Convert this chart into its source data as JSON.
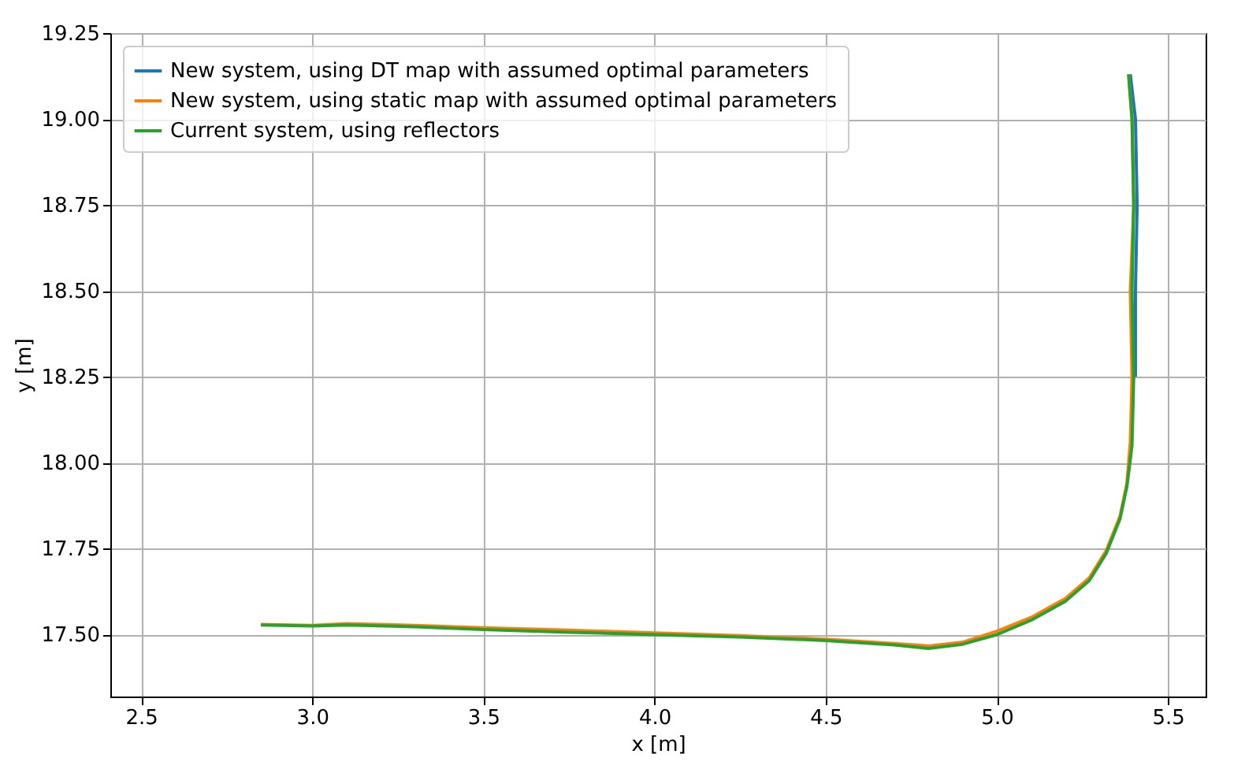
{
  "chart_data": {
    "type": "line",
    "xlabel": "x [m]",
    "ylabel": "y [m]",
    "xlim": [
      2.41,
      5.61
    ],
    "ylim": [
      17.32,
      19.25
    ],
    "xticks": [
      {
        "value": 2.5,
        "label": "2.5"
      },
      {
        "value": 3,
        "label": "3.0"
      },
      {
        "value": 3.5,
        "label": "3.5"
      },
      {
        "value": 4,
        "label": "4.0"
      },
      {
        "value": 4.5,
        "label": "4.5"
      },
      {
        "value": 5,
        "label": "5.0"
      },
      {
        "value": 5.5,
        "label": "5.5"
      }
    ],
    "yticks": [
      {
        "value": 17.5,
        "label": "17.50"
      },
      {
        "value": 17.75,
        "label": "17.75"
      },
      {
        "value": 18,
        "label": "18.00"
      },
      {
        "value": 18.25,
        "label": "18.25"
      },
      {
        "value": 18.5,
        "label": "18.50"
      },
      {
        "value": 18.75,
        "label": "18.75"
      },
      {
        "value": 19,
        "label": "19.00"
      },
      {
        "value": 19.25,
        "label": "19.25"
      }
    ],
    "grid": true,
    "legend": "top left",
    "series": [
      {
        "name": "New system, using DT map with assumed optimal parameters",
        "color": "#1f77b4",
        "x": [
          5.405,
          5.405,
          5.41,
          5.405,
          5.39
        ],
        "values": [
          18.25,
          18.5,
          18.75,
          19.0,
          19.13
        ]
      },
      {
        "name": "New system, using static map with assumed optimal parameters",
        "color": "#ff7f0e",
        "x": [
          2.85,
          3.0,
          3.1,
          3.3,
          3.5,
          3.75,
          4.0,
          4.25,
          4.5,
          4.7,
          4.8,
          4.9,
          5.0,
          5.1,
          5.2,
          5.27,
          5.32,
          5.36,
          5.38,
          5.39,
          5.395,
          5.39,
          5.4,
          5.395,
          5.385
        ],
        "values": [
          17.53,
          17.527,
          17.532,
          17.527,
          17.52,
          17.513,
          17.505,
          17.497,
          17.487,
          17.474,
          17.467,
          17.478,
          17.51,
          17.55,
          17.605,
          17.665,
          17.745,
          17.845,
          17.94,
          18.06,
          18.25,
          18.5,
          18.75,
          19.0,
          19.13
        ]
      },
      {
        "name": "Current system, using reflectors",
        "color": "#2ca02c",
        "x": [
          2.85,
          3.0,
          3.1,
          3.3,
          3.5,
          3.75,
          4.0,
          4.25,
          4.5,
          4.7,
          4.8,
          4.9,
          5.0,
          5.1,
          5.2,
          5.27,
          5.32,
          5.36,
          5.38,
          5.395,
          5.4,
          5.395,
          5.4,
          5.395,
          5.385
        ],
        "values": [
          17.528,
          17.525,
          17.528,
          17.523,
          17.515,
          17.507,
          17.5,
          17.493,
          17.483,
          17.47,
          17.46,
          17.472,
          17.5,
          17.542,
          17.597,
          17.657,
          17.737,
          17.837,
          17.93,
          18.05,
          18.25,
          18.5,
          18.75,
          19.0,
          19.13
        ]
      }
    ]
  }
}
